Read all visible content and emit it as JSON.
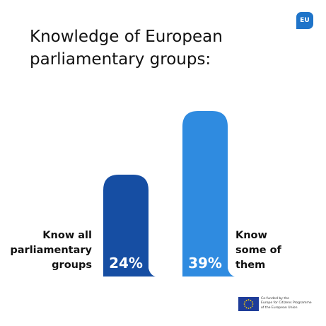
{
  "badge": {
    "text": "EU"
  },
  "title": "Knowledge of European parliamentary groups:",
  "chart_data": {
    "type": "bar",
    "categories": [
      "Know all parliamentary groups",
      "Know some of them"
    ],
    "values": [
      24,
      39
    ],
    "value_labels": [
      "24%",
      "39%"
    ],
    "colors": [
      "#164ea3",
      "#2f8be0"
    ],
    "category_lines": [
      [
        "Know all",
        "parliamentary",
        "groups"
      ],
      [
        "Know",
        "some of",
        "them"
      ]
    ],
    "xlabel": "",
    "ylabel": "",
    "ylim": [
      0,
      43
    ],
    "grid": false
  },
  "footer": {
    "lines": [
      "Co-funded by the",
      "Europe for Citizens Programme",
      "of the European Union"
    ]
  },
  "colors": {
    "accent": "#1f74c9",
    "bar_dark": "#164ea3",
    "bar_light": "#2f8be0"
  }
}
